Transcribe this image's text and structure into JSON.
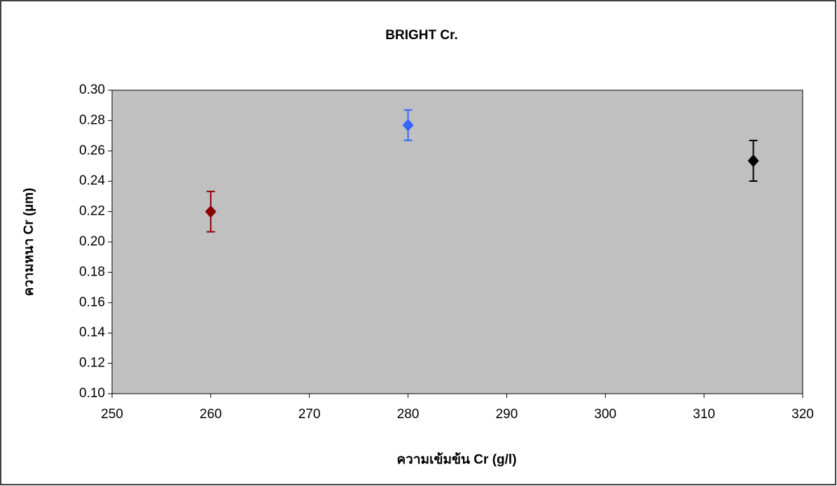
{
  "chart_data": {
    "type": "scatter",
    "title": "BRIGHT Cr.",
    "x_label": "ความเข้มข้น  Cr (g/l)",
    "y_label": "ความหนา Cr (µm)",
    "x": [
      260,
      280,
      315
    ],
    "values": [
      0.22,
      0.277,
      0.2535
    ],
    "errors": [
      0.0133,
      0.01,
      0.0134
    ],
    "colors": [
      "#8b0000",
      "#3366ff",
      "#000000"
    ],
    "xlim": [
      250,
      320
    ],
    "xticks": [
      250,
      260,
      270,
      280,
      290,
      300,
      310,
      320
    ],
    "ylim": [
      0.1,
      0.3
    ],
    "yticks": [
      {
        "value": 0.1,
        "label": "0.10"
      },
      {
        "value": 0.12,
        "label": "0.12"
      },
      {
        "value": 0.14,
        "label": "0.14"
      },
      {
        "value": 0.16,
        "label": "0.16"
      },
      {
        "value": 0.18,
        "label": "0.18"
      },
      {
        "value": 0.2,
        "label": "0.20"
      },
      {
        "value": 0.22,
        "label": "0.22"
      },
      {
        "value": 0.24,
        "label": "0.24"
      },
      {
        "value": 0.26,
        "label": "0.26"
      },
      {
        "value": 0.28,
        "label": "0.28"
      },
      {
        "value": 0.3,
        "label": "0.30"
      }
    ],
    "plot_background": "#c0c0c0"
  }
}
